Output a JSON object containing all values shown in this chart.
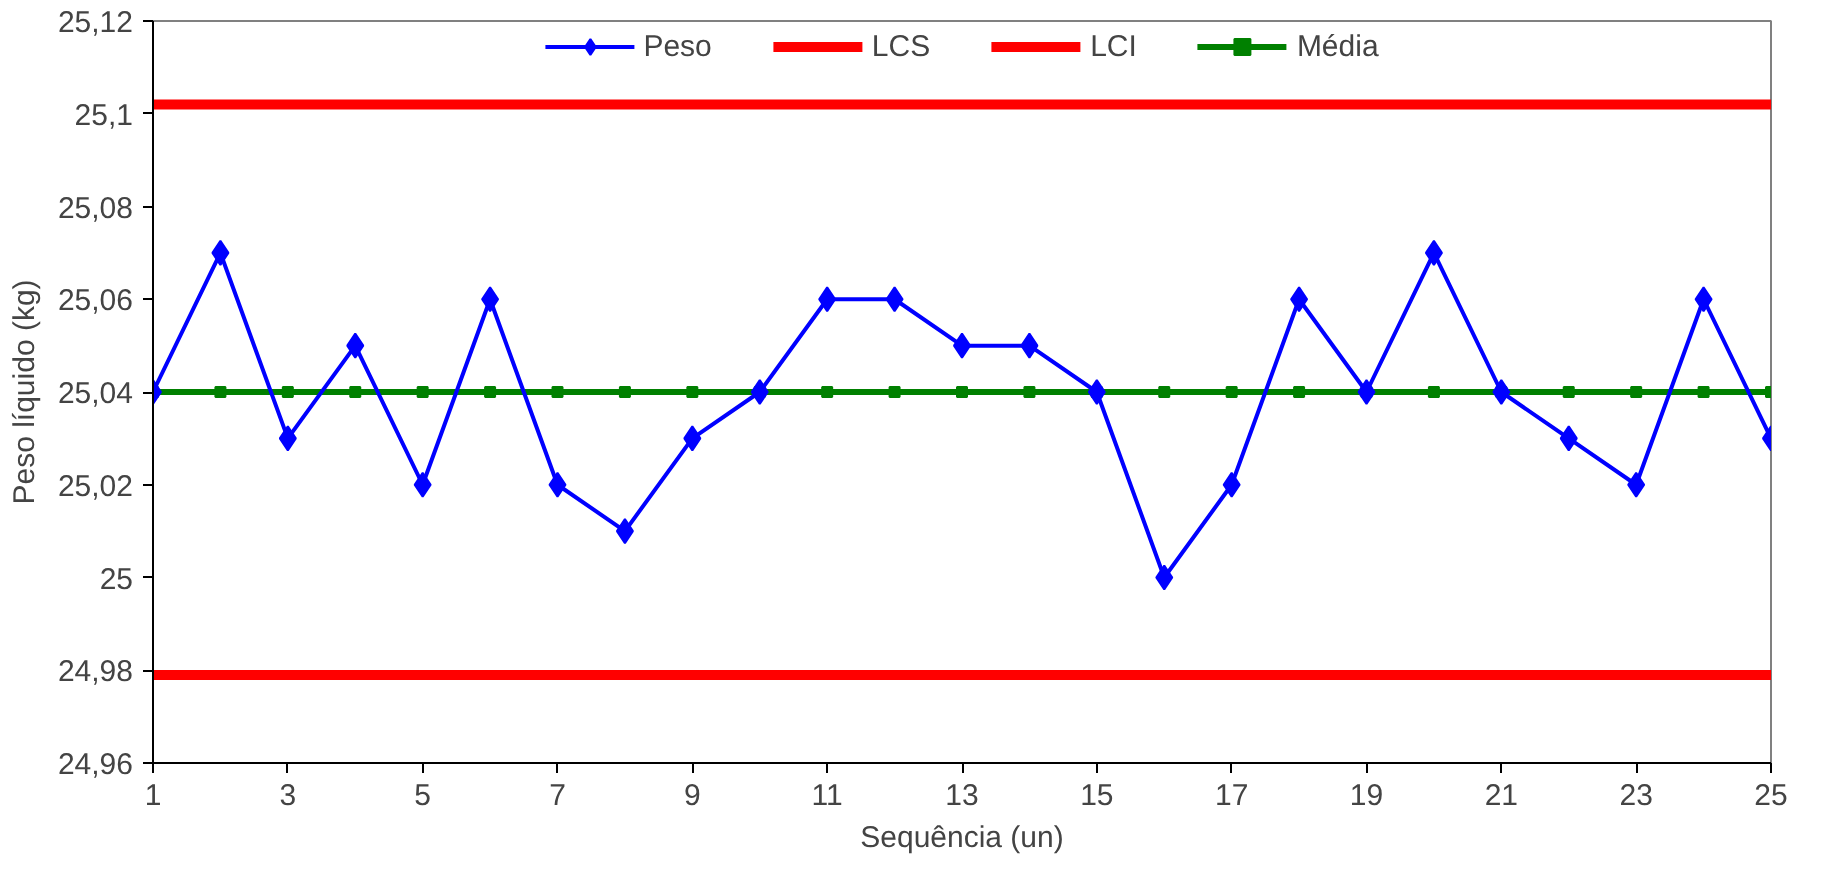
{
  "chart_data": {
    "type": "line",
    "xlabel": "Sequência (un)",
    "ylabel": "Peso líquido (kg)",
    "xlim": [
      1,
      25
    ],
    "xticks": [
      1,
      3,
      5,
      7,
      9,
      11,
      13,
      15,
      17,
      19,
      21,
      23,
      25
    ],
    "ylim": [
      24.96,
      25.12
    ],
    "yticks": [
      {
        "value": 24.96,
        "label": "24,96"
      },
      {
        "value": 24.98,
        "label": "24,98"
      },
      {
        "value": 25,
        "label": "25"
      },
      {
        "value": 25.02,
        "label": "25,02"
      },
      {
        "value": 25.04,
        "label": "25,04"
      },
      {
        "value": 25.06,
        "label": "25,06"
      },
      {
        "value": 25.08,
        "label": "25,08"
      },
      {
        "value": 25.1,
        "label": "25,1"
      },
      {
        "value": 25.12,
        "label": "25,12"
      }
    ],
    "x": [
      1,
      2,
      3,
      4,
      5,
      6,
      7,
      8,
      9,
      10,
      11,
      12,
      13,
      14,
      15,
      16,
      17,
      18,
      19,
      20,
      21,
      22,
      23,
      24,
      25
    ],
    "series": [
      {
        "name": "Peso",
        "color": "#0000ff",
        "marker": "diamond",
        "values": [
          25.04,
          25.07,
          25.03,
          25.05,
          25.02,
          25.06,
          25.02,
          25.01,
          25.03,
          25.04,
          25.06,
          25.06,
          25.05,
          25.05,
          25.04,
          25.0,
          25.02,
          25.06,
          25.04,
          25.07,
          25.04,
          25.03,
          25.02,
          25.06,
          25.03
        ]
      },
      {
        "name": "LCS",
        "color": "#ff0000",
        "marker": "none",
        "values": [
          25.102,
          25.102,
          25.102,
          25.102,
          25.102,
          25.102,
          25.102,
          25.102,
          25.102,
          25.102,
          25.102,
          25.102,
          25.102,
          25.102,
          25.102,
          25.102,
          25.102,
          25.102,
          25.102,
          25.102,
          25.102,
          25.102,
          25.102,
          25.102,
          25.102
        ]
      },
      {
        "name": "LCI",
        "color": "#ff0000",
        "marker": "none",
        "values": [
          24.979,
          24.979,
          24.979,
          24.979,
          24.979,
          24.979,
          24.979,
          24.979,
          24.979,
          24.979,
          24.979,
          24.979,
          24.979,
          24.979,
          24.979,
          24.979,
          24.979,
          24.979,
          24.979,
          24.979,
          24.979,
          24.979,
          24.979,
          24.979,
          24.979
        ]
      },
      {
        "name": "Média",
        "color": "#008000",
        "marker": "square",
        "values": [
          25.04,
          25.04,
          25.04,
          25.04,
          25.04,
          25.04,
          25.04,
          25.04,
          25.04,
          25.04,
          25.04,
          25.04,
          25.04,
          25.04,
          25.04,
          25.04,
          25.04,
          25.04,
          25.04,
          25.04,
          25.04,
          25.04,
          25.04,
          25.04,
          25.04
        ]
      }
    ],
    "legend": "top",
    "grid": false
  }
}
